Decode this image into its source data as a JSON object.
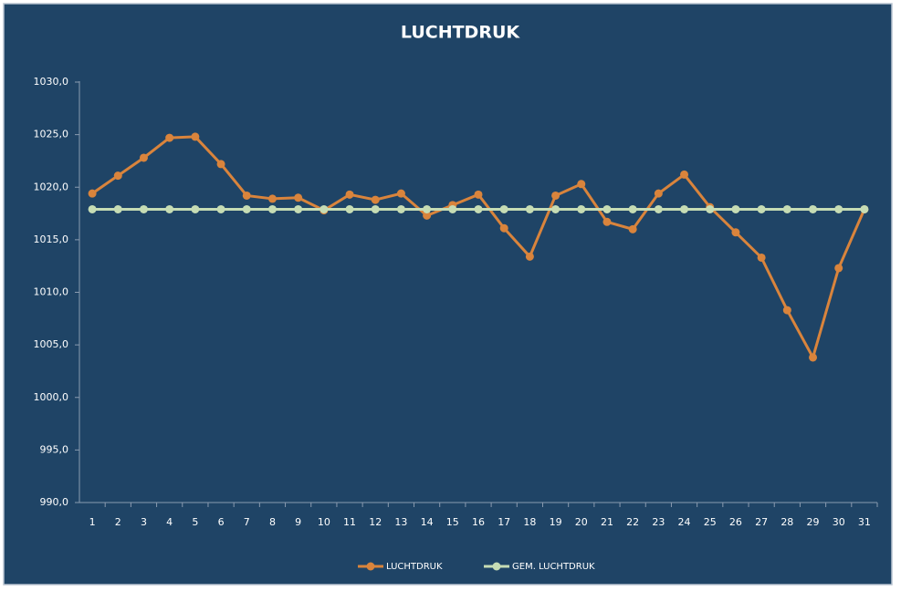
{
  "chart_data": {
    "type": "line",
    "title": "LUCHTDRUK",
    "categories": [
      1,
      2,
      3,
      4,
      5,
      6,
      7,
      8,
      9,
      10,
      11,
      12,
      13,
      14,
      15,
      16,
      17,
      18,
      19,
      20,
      21,
      22,
      23,
      24,
      25,
      26,
      27,
      28,
      29,
      30,
      31
    ],
    "series": [
      {
        "name": "LUCHTDRUK",
        "color": "#d9843c",
        "values": [
          1019.4,
          1021.1,
          1022.8,
          1024.7,
          1024.8,
          1022.2,
          1019.2,
          1018.9,
          1019.0,
          1017.8,
          1019.3,
          1018.8,
          1019.4,
          1017.3,
          1018.3,
          1019.3,
          1016.1,
          1013.4,
          1019.2,
          1020.3,
          1016.7,
          1016.0,
          1019.4,
          1021.2,
          1018.1,
          1015.7,
          1013.3,
          1008.3,
          1003.8,
          1012.3,
          1017.9
        ]
      },
      {
        "name": "GEM. LUCHTDRUK",
        "color": "#c6dcb4",
        "values": [
          1017.9,
          1017.9,
          1017.9,
          1017.9,
          1017.9,
          1017.9,
          1017.9,
          1017.9,
          1017.9,
          1017.9,
          1017.9,
          1017.9,
          1017.9,
          1017.9,
          1017.9,
          1017.9,
          1017.9,
          1017.9,
          1017.9,
          1017.9,
          1017.9,
          1017.9,
          1017.9,
          1017.9,
          1017.9,
          1017.9,
          1017.9,
          1017.9,
          1017.9,
          1017.9,
          1017.9
        ]
      }
    ],
    "ylim": [
      990,
      1030
    ],
    "yticks": [
      {
        "value": 990,
        "label": "990,0"
      },
      {
        "value": 995,
        "label": "995,0"
      },
      {
        "value": 1000,
        "label": "1000,0"
      },
      {
        "value": 1005,
        "label": "1005,0"
      },
      {
        "value": 1010,
        "label": "1010,0"
      },
      {
        "value": 1015,
        "label": "1015,0"
      },
      {
        "value": 1020,
        "label": "1020,0"
      },
      {
        "value": 1025,
        "label": "1025,0"
      },
      {
        "value": 1030,
        "label": "1030,0"
      }
    ],
    "grid": false,
    "legend": "bottom"
  }
}
